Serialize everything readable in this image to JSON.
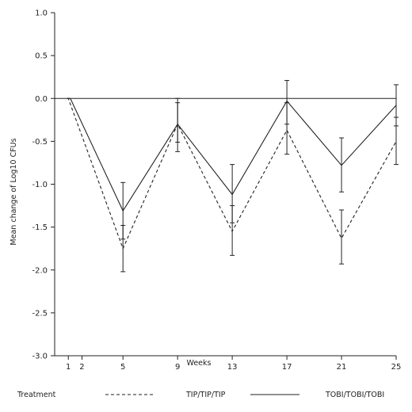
{
  "chart_data": {
    "type": "line",
    "title": "",
    "xlabel": "Weeks",
    "ylabel": "Mean change of Log10 CFUs",
    "x_ticks": [
      1,
      2,
      5,
      9,
      13,
      17,
      21,
      25
    ],
    "x_tick_labels": [
      "1",
      "2",
      "5",
      "9",
      "13",
      "17",
      "21",
      "25"
    ],
    "xlim": [
      0,
      25
    ],
    "y_ticks": [
      1.0,
      0.5,
      0.0,
      -0.5,
      -1.0,
      -1.5,
      -2.0,
      -2.5,
      -3.0
    ],
    "y_tick_labels": [
      "1.0",
      "0.5",
      "0.0",
      "-0.5",
      "-1.0",
      "-1.5",
      "-2.0",
      "-2.5",
      "-3.0"
    ],
    "ylim": [
      -3.0,
      1.0
    ],
    "reference_line_y": 0.0,
    "grid": false,
    "legend": {
      "placement": "bottom",
      "title": "Treatment"
    },
    "series": [
      {
        "name": "TIP/TIP/TIP",
        "line_style": "dashed",
        "x": [
          0.9,
          1.0,
          5,
          9,
          13,
          17,
          21,
          25
        ],
        "y": [
          0.0,
          0.0,
          -1.75,
          -0.3,
          -1.55,
          -0.37,
          -1.63,
          -0.5
        ],
        "err_low": [
          null,
          null,
          -2.02,
          -0.62,
          -1.83,
          -0.65,
          -1.93,
          -0.77
        ],
        "err_high": [
          null,
          null,
          -1.48,
          0.0,
          -1.25,
          -0.05,
          -1.3,
          -0.22
        ]
      },
      {
        "name": "TOBI/TOBI/TOBI",
        "line_style": "solid",
        "x": [
          0.9,
          1.15,
          5,
          9,
          13,
          17,
          21,
          25
        ],
        "y": [
          0.0,
          0.0,
          -1.31,
          -0.3,
          -1.12,
          -0.03,
          -0.78,
          -0.08
        ],
        "err_low": [
          null,
          null,
          -1.64,
          -0.51,
          -1.45,
          -0.3,
          -1.09,
          -0.32
        ],
        "err_high": [
          null,
          null,
          -0.98,
          -0.05,
          -0.77,
          0.21,
          -0.46,
          0.16
        ]
      }
    ]
  }
}
